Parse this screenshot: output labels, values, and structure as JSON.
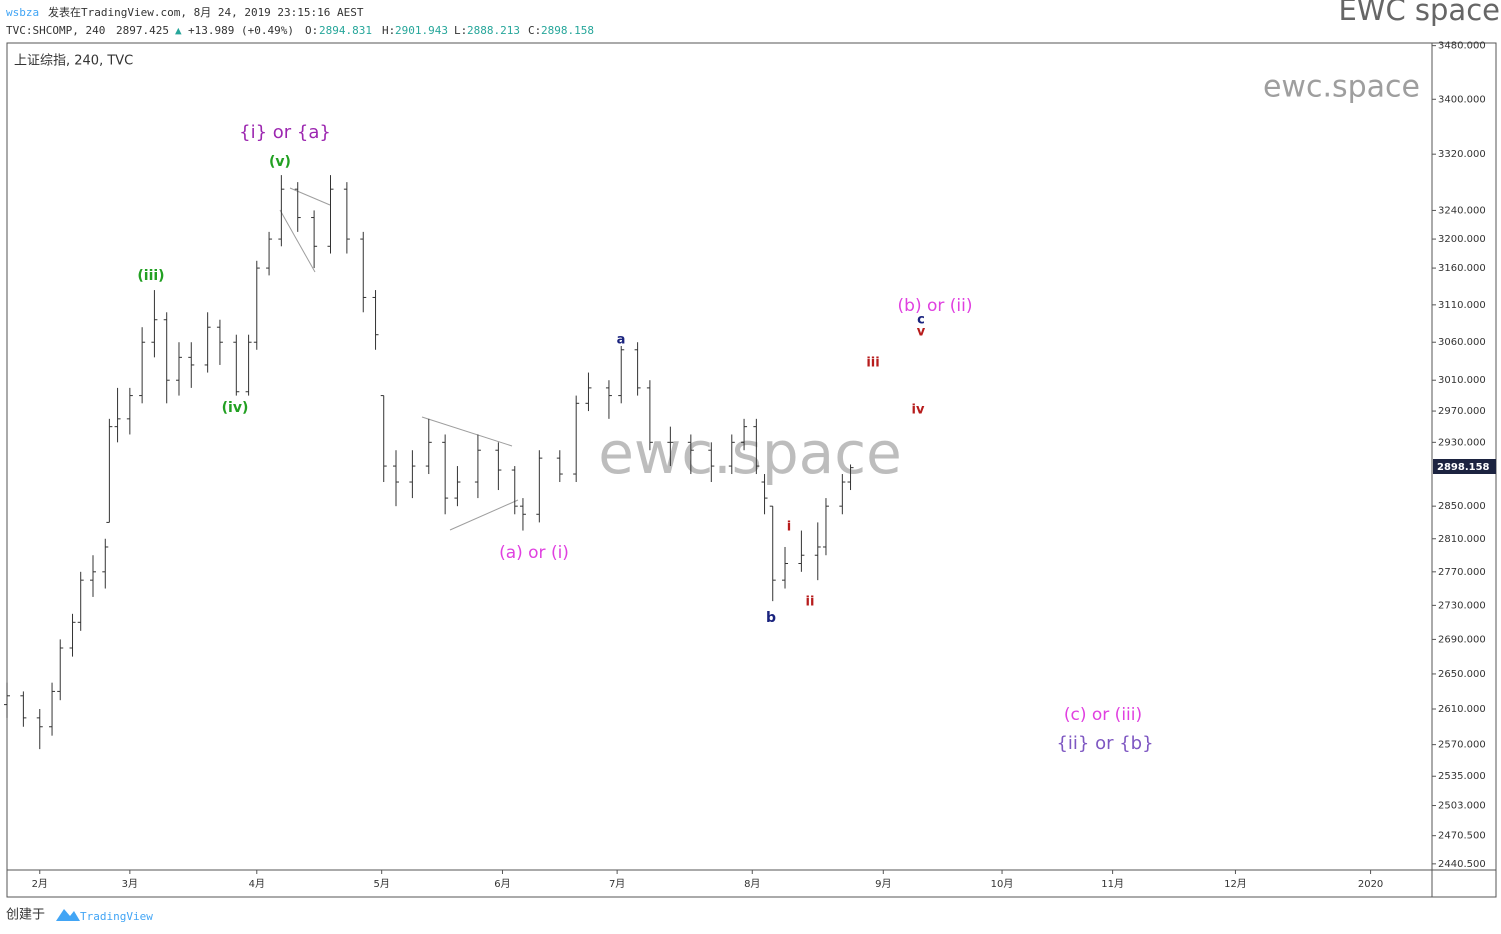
{
  "header": {
    "author": "wsbza",
    "published": "发表在TradingView.com, 8月 24, 2019 23:15:16 AEST",
    "brand": "EWC space",
    "symbol": "TVC:SHCOMP, 240",
    "last": "2897.425",
    "arrow": "▲",
    "change": "+13.989 (+0.49%)",
    "open_label": "O:",
    "open": "2894.831",
    "high_label": "H:",
    "high": "2901.943",
    "low_label": "L:",
    "low": "2888.213",
    "close_label": "C:",
    "close": "2898.158",
    "pane_title": "上证综指, 240, TVC",
    "watermark": "ewc.space",
    "watermark_small": "ewc.space",
    "price_tag": "2898.158"
  },
  "footer": {
    "created": "创建于",
    "logo": "TradingView"
  },
  "chart_data": {
    "type": "ohlc",
    "log_scale": true,
    "color": "#333333",
    "x": [
      0,
      4,
      8,
      11,
      13,
      16,
      18,
      21,
      24,
      25,
      27,
      30,
      33,
      36,
      39,
      42,
      45,
      49,
      52,
      56,
      59,
      61,
      64,
      67,
      71,
      75,
      79,
      83,
      87,
      90,
      92,
      95,
      99,
      103,
      107,
      110,
      115,
      120,
      124,
      126,
      130,
      135,
      139,
      142,
      147,
      150,
      154,
      157,
      162,
      167,
      172,
      177,
      180,
      183,
      185,
      187,
      190,
      194,
      198,
      200,
      204,
      206
    ],
    "series": [
      {
        "open": [
          2615,
          2625,
          2600,
          2590,
          2630,
          2680,
          2710,
          2760,
          2770,
          2830,
          2950,
          2960,
          2990,
          3060,
          3090,
          3010,
          3040,
          3030,
          3080,
          3060,
          2995,
          3060,
          3160,
          3200,
          3270,
          3230,
          3190,
          3270,
          3200,
          3120,
          2990,
          2900,
          2880,
          2900,
          2930,
          2860,
          2880,
          2920,
          2895,
          2850,
          2840,
          2910,
          2890,
          2980,
          3000,
          2990,
          3050,
          3000,
          2930,
          2930,
          2920,
          2900,
          2930,
          2950,
          2880,
          2850,
          2760,
          2780,
          2790,
          2800,
          2850,
          2880
        ],
        "high": [
          2640,
          2630,
          2610,
          2640,
          2690,
          2720,
          2770,
          2790,
          2810,
          2960,
          3000,
          3000,
          3080,
          3130,
          3100,
          3060,
          3060,
          3100,
          3090,
          3070,
          3070,
          3170,
          3210,
          3290,
          3280,
          3240,
          3290,
          3280,
          3210,
          3130,
          2990,
          2920,
          2920,
          2960,
          2940,
          2900,
          2940,
          2930,
          2900,
          2860,
          2920,
          2920,
          2990,
          3020,
          3010,
          3055,
          3060,
          3010,
          2950,
          2940,
          2930,
          2940,
          2960,
          2960,
          2890,
          2850,
          2800,
          2820,
          2830,
          2860,
          2890,
          2902
        ],
        "low": [
          2600,
          2590,
          2565,
          2580,
          2620,
          2670,
          2700,
          2740,
          2750,
          2830,
          2930,
          2940,
          2980,
          3040,
          2980,
          2990,
          3000,
          3020,
          3030,
          2990,
          2990,
          3050,
          3150,
          3190,
          3210,
          3160,
          3180,
          3180,
          3100,
          3050,
          2880,
          2850,
          2860,
          2890,
          2840,
          2850,
          2860,
          2870,
          2840,
          2820,
          2830,
          2880,
          2880,
          2970,
          2960,
          2980,
          2990,
          2920,
          2900,
          2890,
          2880,
          2890,
          2920,
          2890,
          2840,
          2735,
          2750,
          2770,
          2760,
          2790,
          2840,
          2870
        ],
        "close": [
          2625,
          2600,
          2590,
          2630,
          2680,
          2710,
          2760,
          2770,
          2800,
          2950,
          2960,
          2990,
          3060,
          3090,
          3010,
          3040,
          3030,
          3080,
          3060,
          2995,
          3060,
          3160,
          3200,
          3270,
          3230,
          3190,
          3270,
          3200,
          3120,
          3070,
          2900,
          2880,
          2900,
          2930,
          2860,
          2880,
          2920,
          2895,
          2850,
          2840,
          2910,
          2890,
          2980,
          3000,
          2990,
          3050,
          3000,
          2930,
          2930,
          2920,
          2900,
          2930,
          2950,
          2900,
          2860,
          2760,
          2780,
          2790,
          2800,
          2850,
          2880,
          2898
        ]
      }
    ],
    "ylim": [
      2434,
      3484
    ],
    "yticks": [
      {
        "value": 3480,
        "label": "3480.000"
      },
      {
        "value": 3400,
        "label": "3400.000"
      },
      {
        "value": 3320,
        "label": "3320.000"
      },
      {
        "value": 3240,
        "label": "3240.000"
      },
      {
        "value": 3200,
        "label": "3200.000"
      },
      {
        "value": 3160,
        "label": "3160.000"
      },
      {
        "value": 3110,
        "label": "3110.000"
      },
      {
        "value": 3060,
        "label": "3060.000"
      },
      {
        "value": 3010,
        "label": "3010.000"
      },
      {
        "value": 2970,
        "label": "2970.000"
      },
      {
        "value": 2930,
        "label": "2930.000"
      },
      {
        "value": 2850,
        "label": "2850.000"
      },
      {
        "value": 2810,
        "label": "2810.000"
      },
      {
        "value": 2770,
        "label": "2770.000"
      },
      {
        "value": 2730,
        "label": "2730.000"
      },
      {
        "value": 2690,
        "label": "2690.000"
      },
      {
        "value": 2650,
        "label": "2650.000"
      },
      {
        "value": 2610,
        "label": "2610.000"
      },
      {
        "value": 2570,
        "label": "2570.000"
      },
      {
        "value": 2535,
        "label": "2535.000"
      },
      {
        "value": 2503,
        "label": "2503.000"
      },
      {
        "value": 2470.5,
        "label": "2470.500"
      },
      {
        "value": 2440.5,
        "label": "2440.500"
      }
    ],
    "xlim": [
      0,
      348
    ],
    "xticks": [
      {
        "value": 8,
        "label": "2月"
      },
      {
        "value": 30,
        "label": "3月"
      },
      {
        "value": 61,
        "label": "4月"
      },
      {
        "value": 91.5,
        "label": "5月"
      },
      {
        "value": 121,
        "label": "6月"
      },
      {
        "value": 149,
        "label": "7月"
      },
      {
        "value": 182,
        "label": "8月"
      },
      {
        "value": 214,
        "label": "9月"
      },
      {
        "value": 243,
        "label": "10月"
      },
      {
        "value": 270,
        "label": "11月"
      },
      {
        "value": 300,
        "label": "12月"
      },
      {
        "value": 333,
        "label": "2020"
      }
    ],
    "annotations": [
      {
        "text": "{i} or {a}",
        "color": "#9c27b0"
      },
      {
        "text": "(v)",
        "color": "#22a022"
      },
      {
        "text": "(iii)",
        "color": "#22a022"
      },
      {
        "text": "(iv)",
        "color": "#22a022"
      },
      {
        "text": "(a) or (i)",
        "color": "#e040e0"
      },
      {
        "text": "a",
        "color": "#1a237e"
      },
      {
        "text": "b",
        "color": "#1a237e"
      },
      {
        "text": "i",
        "color": "#b71c1c"
      },
      {
        "text": "ii",
        "color": "#b71c1c"
      },
      {
        "text": "iii",
        "color": "#b71c1c"
      },
      {
        "text": "iv",
        "color": "#b71c1c"
      },
      {
        "text": "v",
        "color": "#b71c1c"
      },
      {
        "text": "c",
        "color": "#1a237e"
      },
      {
        "text": "(b) or (ii)",
        "color": "#e040e0"
      },
      {
        "text": "(c) or (iii)",
        "color": "#e040e0"
      },
      {
        "text": "{ii} or {b}",
        "color": "#7e57c2"
      }
    ]
  }
}
